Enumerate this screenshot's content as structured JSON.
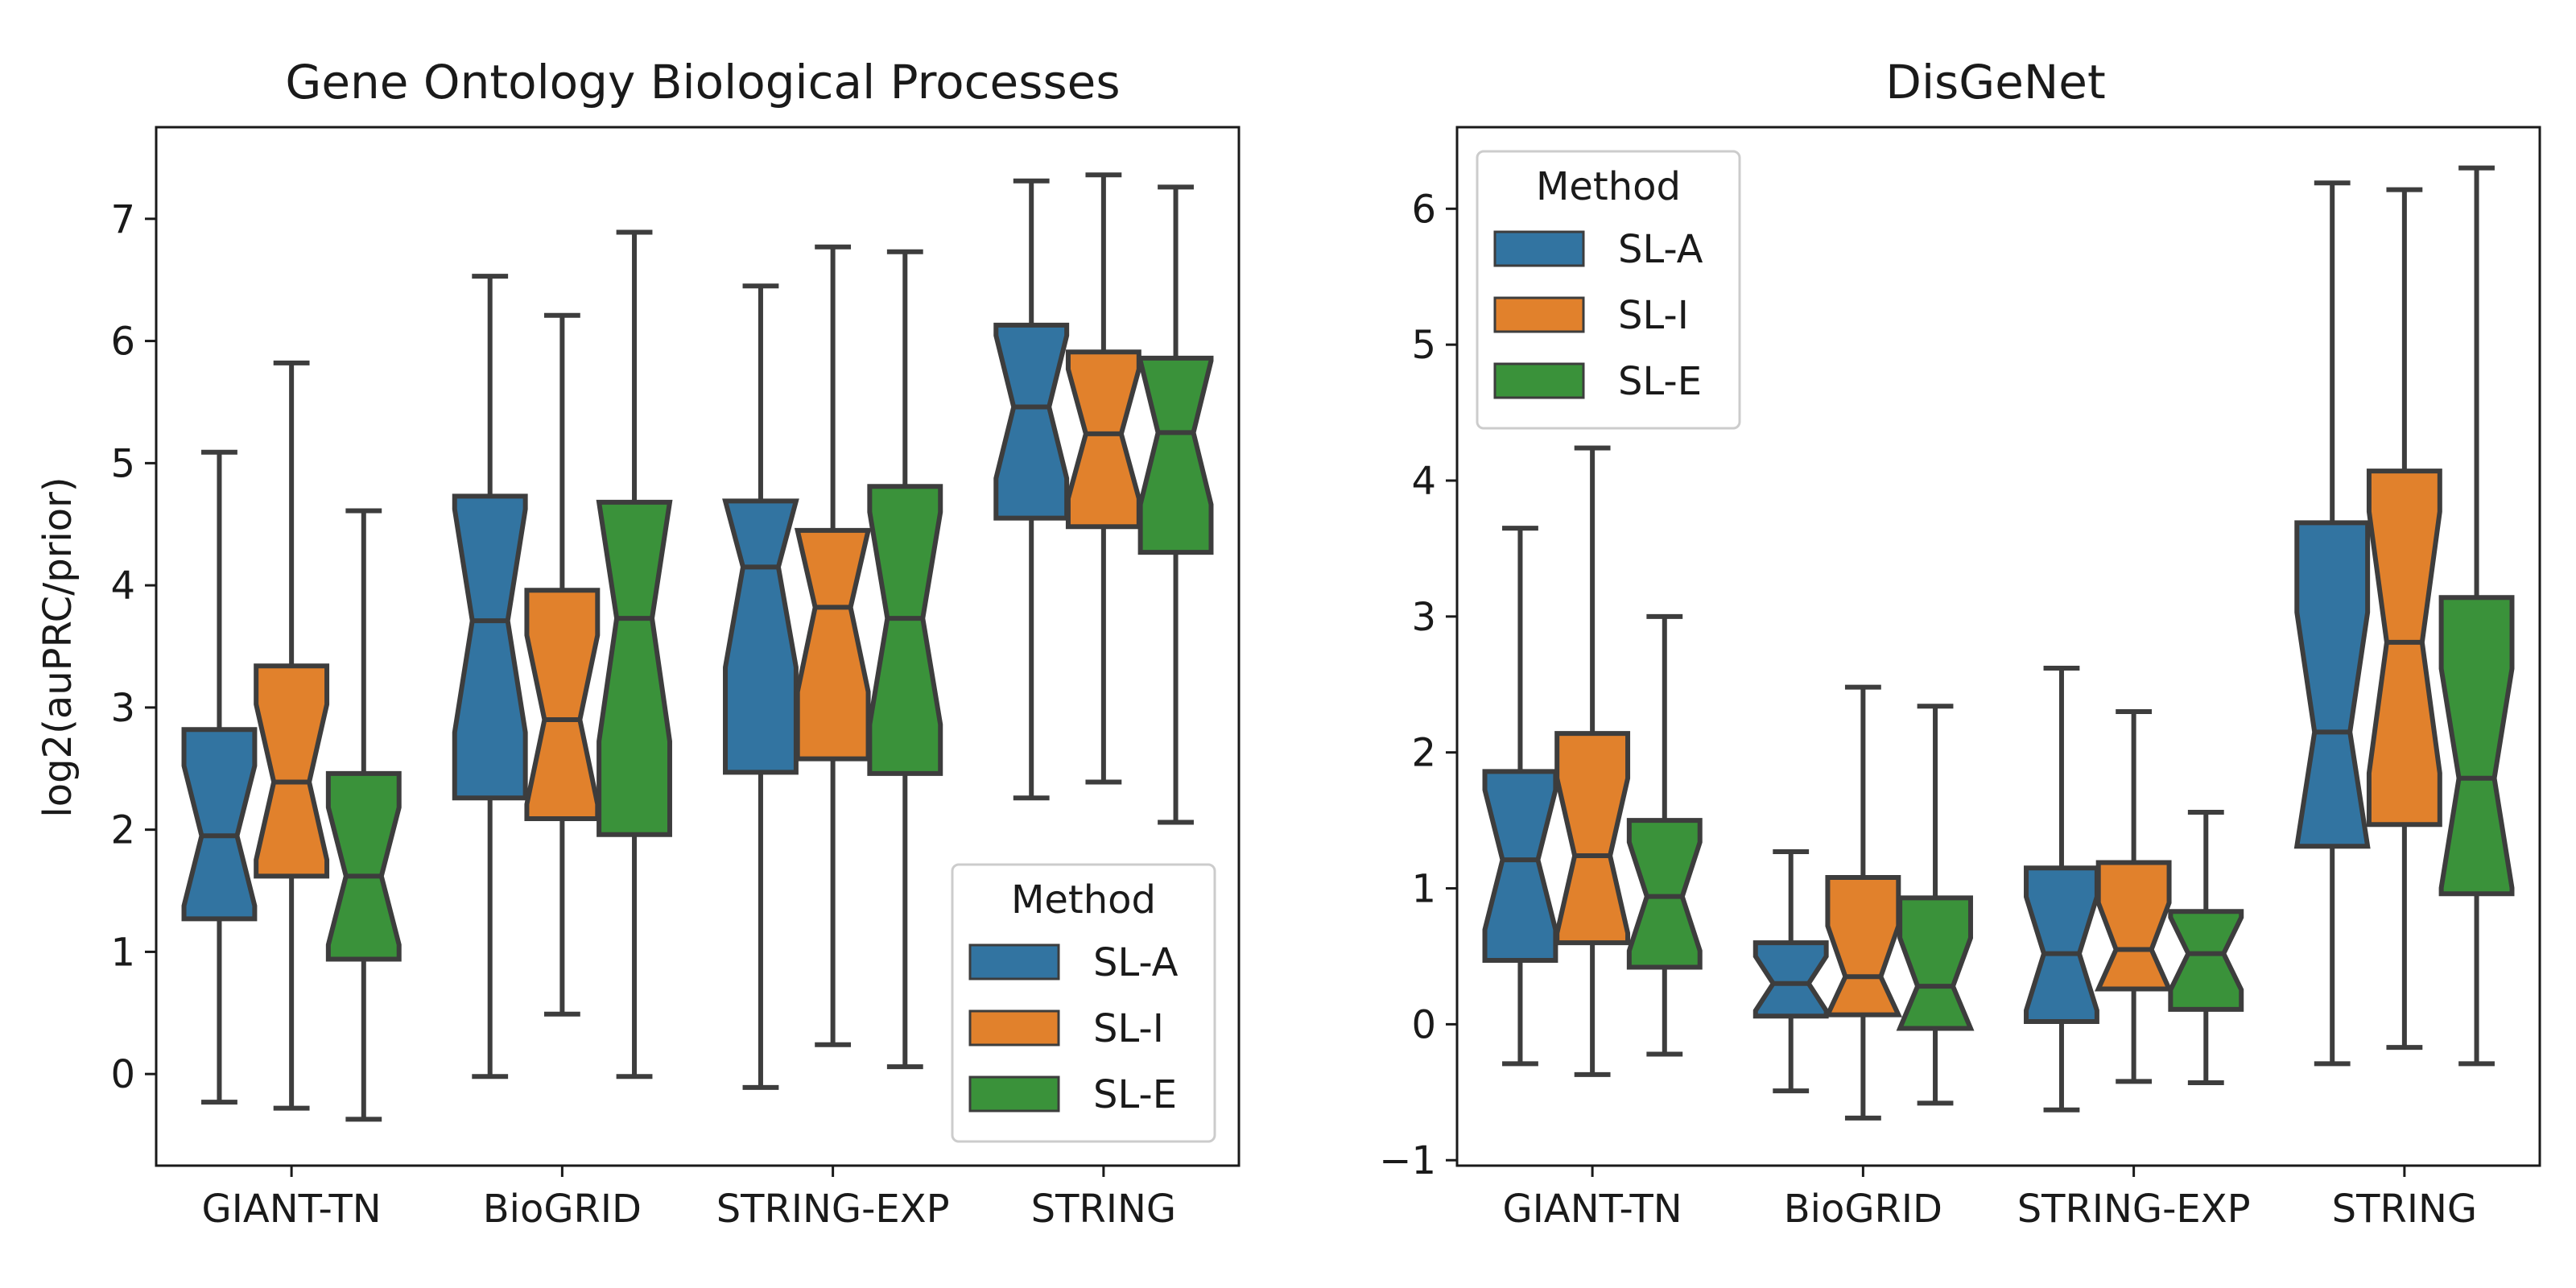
{
  "colors": {
    "SL-A": "#3274a1",
    "SL-I": "#e1812c",
    "SL-E": "#3a923a",
    "edge": "#3d3d3d"
  },
  "chart_data": [
    {
      "type": "boxplot",
      "title": "Gene Ontology Biological Processes",
      "xlabel": "",
      "ylabel": "log2(auPRC/prior)",
      "ylim": [
        -0.75,
        7.75
      ],
      "yticks": [
        "0",
        "1",
        "2",
        "3",
        "4",
        "5",
        "6",
        "7"
      ],
      "categories": [
        "GIANT-TN",
        "BioGRID",
        "STRING-EXP",
        "STRING"
      ],
      "legend": {
        "title": "Method",
        "location": "lower-right"
      },
      "series": [
        {
          "name": "SL-A",
          "boxes": [
            {
              "whislo": -0.23,
              "q1": 1.27,
              "med": 1.95,
              "q3": 2.82,
              "whishi": 5.09
            },
            {
              "whislo": -0.02,
              "q1": 2.26,
              "med": 3.71,
              "q3": 4.73,
              "whishi": 6.53
            },
            {
              "whislo": -0.11,
              "q1": 2.47,
              "med": 4.15,
              "q3": 4.69,
              "whishi": 6.45
            },
            {
              "whislo": 2.26,
              "q1": 4.55,
              "med": 5.46,
              "q3": 6.13,
              "whishi": 7.31
            }
          ]
        },
        {
          "name": "SL-I",
          "boxes": [
            {
              "whislo": -0.28,
              "q1": 1.62,
              "med": 2.39,
              "q3": 3.34,
              "whishi": 5.82
            },
            {
              "whislo": 0.49,
              "q1": 2.09,
              "med": 2.9,
              "q3": 3.96,
              "whishi": 6.21
            },
            {
              "whislo": 0.24,
              "q1": 2.58,
              "med": 3.82,
              "q3": 4.45,
              "whishi": 6.77
            },
            {
              "whislo": 2.39,
              "q1": 4.48,
              "med": 5.24,
              "q3": 5.91,
              "whishi": 7.36
            }
          ]
        },
        {
          "name": "SL-E",
          "boxes": [
            {
              "whislo": -0.37,
              "q1": 0.94,
              "med": 1.62,
              "q3": 2.46,
              "whishi": 4.61
            },
            {
              "whislo": -0.02,
              "q1": 1.96,
              "med": 3.73,
              "q3": 4.68,
              "whishi": 6.89
            },
            {
              "whislo": 0.06,
              "q1": 2.46,
              "med": 3.73,
              "q3": 4.81,
              "whishi": 6.73
            },
            {
              "whislo": 2.06,
              "q1": 4.27,
              "med": 5.25,
              "q3": 5.86,
              "whishi": 7.26
            }
          ]
        }
      ]
    },
    {
      "type": "boxplot",
      "title": "DisGeNet",
      "xlabel": "",
      "ylabel": "",
      "ylim": [
        -1.04,
        6.6
      ],
      "yticks": [
        "−1",
        "0",
        "1",
        "2",
        "3",
        "4",
        "5",
        "6"
      ],
      "categories": [
        "GIANT-TN",
        "BioGRID",
        "STRING-EXP",
        "STRING"
      ],
      "legend": {
        "title": "Method",
        "location": "upper-left"
      },
      "series": [
        {
          "name": "SL-A",
          "boxes": [
            {
              "whislo": -0.29,
              "q1": 0.47,
              "med": 1.21,
              "q3": 1.86,
              "whishi": 3.65
            },
            {
              "whislo": -0.49,
              "q1": 0.06,
              "med": 0.3,
              "q3": 0.6,
              "whishi": 1.27
            },
            {
              "whislo": -0.63,
              "q1": 0.02,
              "med": 0.52,
              "q3": 1.15,
              "whishi": 2.62
            },
            {
              "whislo": -0.29,
              "q1": 1.31,
              "med": 2.15,
              "q3": 3.69,
              "whishi": 6.19
            }
          ]
        },
        {
          "name": "SL-I",
          "boxes": [
            {
              "whislo": -0.37,
              "q1": 0.6,
              "med": 1.24,
              "q3": 2.14,
              "whishi": 4.24
            },
            {
              "whislo": -0.69,
              "q1": 0.07,
              "med": 0.35,
              "q3": 1.08,
              "whishi": 2.48
            },
            {
              "whislo": -0.42,
              "q1": 0.26,
              "med": 0.55,
              "q3": 1.19,
              "whishi": 2.3
            },
            {
              "whislo": -0.17,
              "q1": 1.47,
              "med": 2.81,
              "q3": 4.07,
              "whishi": 6.14
            }
          ]
        },
        {
          "name": "SL-E",
          "boxes": [
            {
              "whislo": -0.22,
              "q1": 0.42,
              "med": 0.94,
              "q3": 1.5,
              "whishi": 3.0
            },
            {
              "whislo": -0.58,
              "q1": -0.03,
              "med": 0.28,
              "q3": 0.93,
              "whishi": 2.34
            },
            {
              "whislo": -0.43,
              "q1": 0.11,
              "med": 0.52,
              "q3": 0.83,
              "whishi": 1.56
            },
            {
              "whislo": -0.29,
              "q1": 0.96,
              "med": 1.81,
              "q3": 3.14,
              "whishi": 6.3
            }
          ]
        }
      ]
    }
  ]
}
